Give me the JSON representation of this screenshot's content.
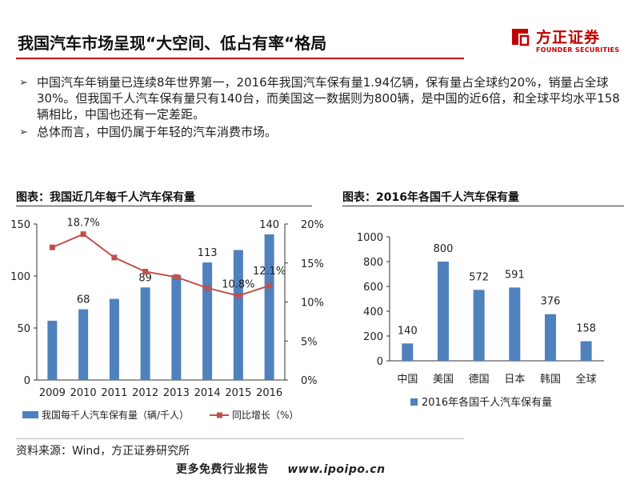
{
  "header": {
    "title": "我国汽车市场呈现“大空间、低占有率“格局",
    "logo_cn": "方正证券",
    "logo_en": "FOUNDER SECURITIES",
    "brand_color": "#c00000"
  },
  "bullets": [
    "中国汽车年销量已连续8年世界第一，2016年我国汽车保有量1.94亿辆，保有量占全球约20%，销量占全球30%。但我国千人汽车保有量只有140台，而美国这一数据则为800辆，是中国的近6倍，和全球平均水平158辆相比，中国也还有一定差距。",
    "总体而言，中国仍属于年轻的汽车消费市场。"
  ],
  "left_chart_title": "图表：我国近几年每千人汽车保有量",
  "right_chart_title": "图表：2016年各国千人汽车保有量",
  "source": "资料来源：Wind，方正证券研究所",
  "footer": {
    "text": "更多免费行业报告",
    "url": "www.ipoipo.cn"
  },
  "chart_data": [
    {
      "type": "bar",
      "categories": [
        "2009",
        "2010",
        "2011",
        "2012",
        "2013",
        "2014",
        "2015",
        "2016"
      ],
      "series": [
        {
          "name": "我国每千人汽车保有量（辆/千人）",
          "kind": "bar",
          "axis": "left",
          "color": "#4f81bd",
          "values": [
            57,
            68,
            78,
            89,
            101,
            113,
            125,
            140
          ],
          "labels": [
            "",
            "68",
            "",
            "89",
            "",
            "113",
            "",
            "140"
          ]
        },
        {
          "name": "同比增长（%）",
          "kind": "line",
          "axis": "right",
          "color": "#c0504d",
          "values": [
            17.0,
            18.7,
            15.7,
            13.9,
            13.2,
            11.8,
            10.8,
            12.1
          ],
          "labels": [
            "",
            "18.7%",
            "",
            "",
            "",
            "",
            "10.8%",
            "12.1%"
          ]
        }
      ],
      "ylim": [
        0,
        150
      ],
      "yticks": [
        "0",
        "50",
        "100",
        "150"
      ],
      "y2lim": [
        0,
        20
      ],
      "y2ticks": [
        "0%",
        "5%",
        "10%",
        "15%",
        "20%"
      ],
      "legend_position": "bottom",
      "grid": false
    },
    {
      "type": "bar",
      "categories": [
        "中国",
        "美国",
        "德国",
        "日本",
        "韩国",
        "全球"
      ],
      "series": [
        {
          "name": "2016年各国千人汽车保有量",
          "color": "#4f81bd",
          "values": [
            140,
            800,
            572,
            591,
            376,
            158
          ]
        }
      ],
      "ylim": [
        0,
        1000
      ],
      "yticks": [
        "0",
        "200",
        "400",
        "600",
        "800",
        "1000"
      ],
      "legend_position": "bottom",
      "grid": false
    }
  ]
}
